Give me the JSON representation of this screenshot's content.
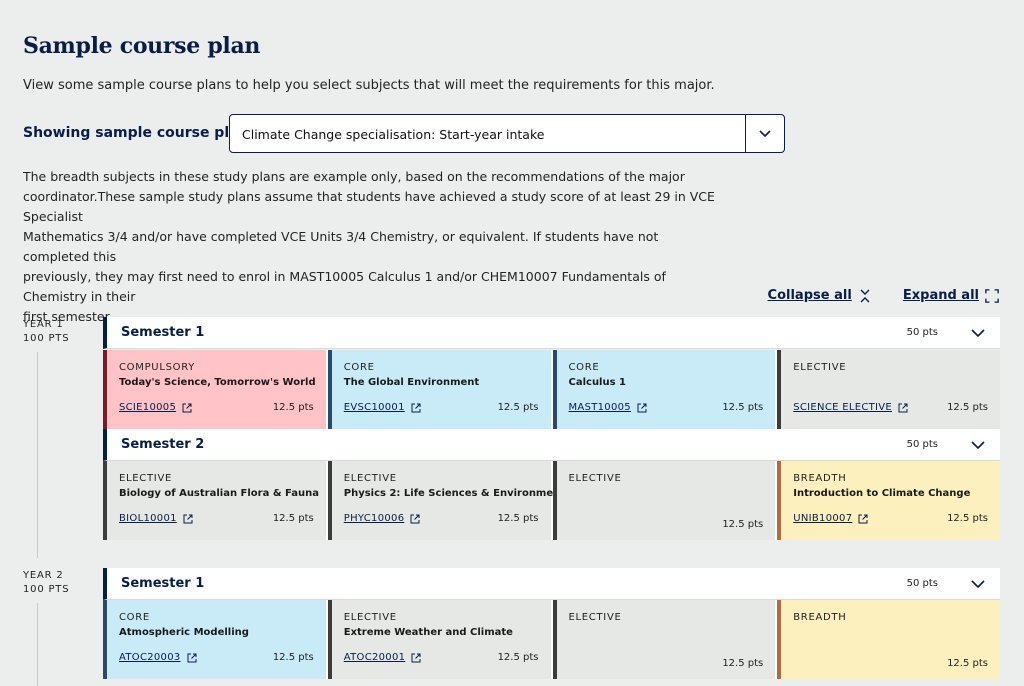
{
  "page": {
    "title": "Sample course plan",
    "intro": "View some sample course plans to help you select subjects that will meet the requirements for this major."
  },
  "selector": {
    "label": "Showing sample course plan:",
    "value": "Climate Change specialisation: Start-year intake"
  },
  "note": {
    "lines": [
      "The breadth subjects in these study plans are example only, based on the recommendations of the major",
      "coordinator.These sample study plans assume that students have achieved a study score of at least 29 in VCE Specialist",
      "Mathematics 3/4 and/or have completed VCE Units 3/4 Chemistry, or equivalent. If students have not completed this",
      "previously, they may first need to enrol in MAST10005 Calculus 1 and/or CHEM10007 Fundamentals of Chemistry in their",
      "first semester."
    ]
  },
  "controls": {
    "collapse_label": "Collapse all",
    "expand_label": "Expand all"
  },
  "years": [
    {
      "label": "YEAR 1",
      "points": "100 PTS",
      "semesters": [
        {
          "title": "Semester 1",
          "points": "50 pts",
          "cards": [
            {
              "kind": "compulsory",
              "type": "COMPULSORY",
              "name": "Today's Science, Tomorrow's World",
              "code": "SCIE10005",
              "points": "12.5 pts"
            },
            {
              "kind": "core",
              "type": "CORE",
              "name": "The Global Environment",
              "code": "EVSC10001",
              "points": "12.5 pts"
            },
            {
              "kind": "core",
              "type": "CORE",
              "name": "Calculus 1",
              "code": "MAST10005",
              "points": "12.5 pts"
            },
            {
              "kind": "elective",
              "type": "ELECTIVE",
              "name": "",
              "code": "SCIENCE ELECTIVE",
              "points": "12.5 pts"
            }
          ]
        },
        {
          "title": "Semester 2",
          "points": "50 pts",
          "cards": [
            {
              "kind": "elective",
              "type": "ELECTIVE",
              "name": "Biology of Australian Flora & Fauna",
              "code": "BIOL10001",
              "points": "12.5 pts"
            },
            {
              "kind": "elective",
              "type": "ELECTIVE",
              "name": "Physics 2: Life Sciences & Environment",
              "code": "PHYC10006",
              "points": "12.5 pts"
            },
            {
              "kind": "elective",
              "type": "ELECTIVE",
              "name": "",
              "code": "",
              "points": "12.5 pts"
            },
            {
              "kind": "breadth",
              "type": "BREADTH",
              "name": "Introduction to Climate Change",
              "code": "UNIB10007",
              "points": "12.5 pts"
            }
          ]
        }
      ]
    },
    {
      "label": "YEAR 2",
      "points": "100 PTS",
      "semesters": [
        {
          "title": "Semester 1",
          "points": "50 pts",
          "cards": [
            {
              "kind": "core",
              "type": "CORE",
              "name": "Atmospheric Modelling",
              "code": "ATOC20003",
              "points": "12.5 pts"
            },
            {
              "kind": "elective",
              "type": "ELECTIVE",
              "name": "Extreme Weather and Climate",
              "code": "ATOC20001",
              "points": "12.5 pts"
            },
            {
              "kind": "elective",
              "type": "ELECTIVE",
              "name": "",
              "code": "",
              "points": "12.5 pts"
            },
            {
              "kind": "breadth",
              "type": "BREADTH",
              "name": "",
              "code": "",
              "points": "12.5 pts"
            }
          ]
        }
      ]
    }
  ],
  "colors": {
    "navy": "#0a1d47",
    "compulsory": "#ffc3c8",
    "core": "#c9ebf8",
    "elective": "#e5e8e5",
    "breadth": "#fdf0bf"
  },
  "icons": [
    "chevron-down-icon",
    "collapse-icon",
    "expand-icon",
    "external-link-icon"
  ]
}
